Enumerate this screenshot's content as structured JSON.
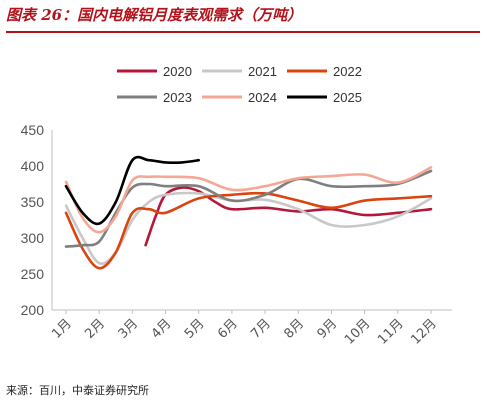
{
  "title": "图表 26：国内电解铝月度表观需求（万吨）",
  "source": "来源：百川，中泰证券研究所",
  "chart_data": {
    "type": "line",
    "categories": [
      "1月",
      "2月",
      "3月",
      "4月",
      "5月",
      "6月",
      "7月",
      "8月",
      "9月",
      "10月",
      "11月",
      "12月"
    ],
    "ylim": [
      200,
      450
    ],
    "yticks": [
      200,
      250,
      300,
      350,
      400,
      450
    ],
    "legend_placement": "top",
    "series": [
      {
        "name": "2020",
        "color": "#b5163a",
        "x": [
          3.4,
          3.7,
          4,
          4.5,
          5,
          5.5,
          6,
          7,
          8,
          9,
          10,
          11,
          12
        ],
        "values": [
          290,
          330,
          360,
          370,
          365,
          350,
          340,
          342,
          337,
          340,
          332,
          335,
          340
        ]
      },
      {
        "name": "2021",
        "color": "#c8c8c8",
        "x": [
          1,
          1.5,
          2,
          2.5,
          3,
          3.5,
          4,
          5,
          6,
          7,
          8,
          9,
          10,
          11,
          12
        ],
        "values": [
          345,
          300,
          265,
          280,
          325,
          350,
          360,
          362,
          352,
          353,
          340,
          318,
          318,
          330,
          355
        ]
      },
      {
        "name": "2022",
        "color": "#d9440f",
        "x": [
          1,
          1.5,
          2,
          2.5,
          3,
          3.5,
          4,
          5,
          6,
          7,
          8,
          9,
          10,
          11,
          12
        ],
        "values": [
          335,
          285,
          258,
          280,
          335,
          340,
          335,
          355,
          360,
          362,
          352,
          342,
          352,
          355,
          358
        ]
      },
      {
        "name": "2023",
        "color": "#7f7f7f",
        "x": [
          1,
          1.5,
          2,
          2.5,
          3,
          3.5,
          4,
          5,
          6,
          7,
          8,
          9,
          10,
          11,
          12
        ],
        "values": [
          288,
          290,
          295,
          335,
          370,
          375,
          372,
          372,
          352,
          360,
          382,
          372,
          372,
          375,
          393
        ]
      },
      {
        "name": "2024",
        "color": "#f4a795",
        "x": [
          1,
          1.5,
          2,
          2.5,
          3,
          3.5,
          4,
          5,
          6,
          7,
          8,
          9,
          10,
          11,
          12
        ],
        "values": [
          378,
          328,
          308,
          330,
          380,
          385,
          385,
          383,
          367,
          372,
          383,
          386,
          388,
          377,
          398
        ]
      },
      {
        "name": "2025",
        "color": "#000000",
        "x": [
          1,
          1.5,
          2,
          2.5,
          3,
          3.5,
          4,
          4.5,
          5
        ],
        "values": [
          372,
          335,
          320,
          350,
          408,
          408,
          405,
          405,
          408
        ]
      }
    ]
  }
}
